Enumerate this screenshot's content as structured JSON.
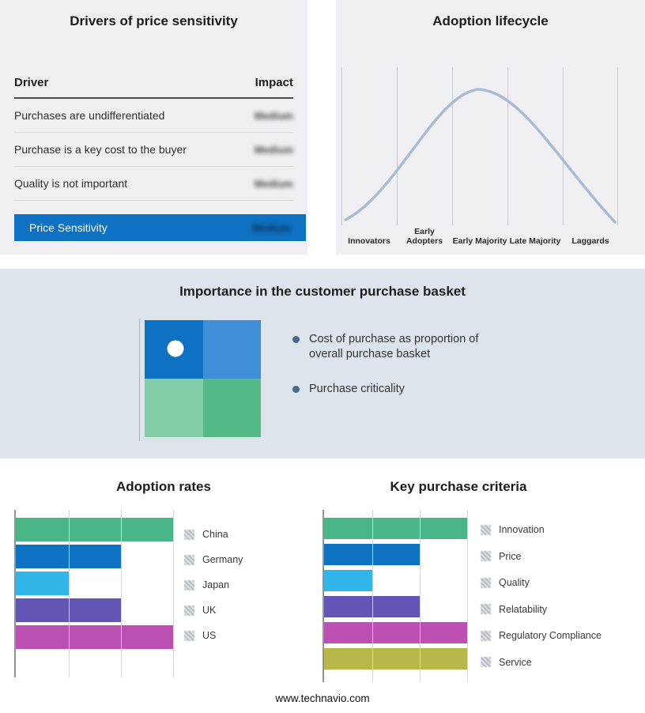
{
  "page": {
    "footer_url": "www.technavio.com"
  },
  "drivers_panel": {
    "title": "Drivers of price sensitivity",
    "columns": {
      "driver": "Driver",
      "impact": "Impact"
    },
    "rows": [
      {
        "label": "Purchases are undifferentiated",
        "impact": "Medium"
      },
      {
        "label": "Purchase is a key cost to the buyer",
        "impact": "Medium"
      },
      {
        "label": "Quality is not important",
        "impact": "Medium"
      }
    ],
    "summary": {
      "label": "Price Sensitivity",
      "impact": "Medium",
      "bg_color": "#0e71c2"
    }
  },
  "basket_panel": {
    "title": "Importance in the customer purchase basket",
    "bullets": [
      "Cost of purchase as proportion of overall purchase basket",
      "Purchase criticality"
    ],
    "bullet_color": "#49698e",
    "matrix": {
      "top_left": "#0e71c2",
      "top_right": "#3e8ed8",
      "bottom_left": "#82cba7",
      "bottom_right": "#52b987",
      "dot_quadrant": "top-left"
    }
  },
  "chart_data": [
    {
      "type": "bar",
      "title": "Adoption rates",
      "orientation": "horizontal",
      "categories": [
        "China",
        "Germany",
        "Japan",
        "UK",
        "US"
      ],
      "values": [
        3,
        2,
        1,
        2,
        3
      ],
      "xlim": [
        0,
        3
      ],
      "colors": [
        "#4ab586",
        "#0e71c2",
        "#32b6ea",
        "#6355b4",
        "#bd50b3"
      ],
      "grid": true,
      "legend_position": "right"
    },
    {
      "type": "bar",
      "title": "Key purchase criteria",
      "orientation": "horizontal",
      "categories": [
        "Innovation",
        "Price",
        "Quality",
        "Relatability",
        "Regulatory Compliance",
        "Service"
      ],
      "values": [
        3,
        2,
        1,
        2,
        3,
        3
      ],
      "xlim": [
        0,
        3
      ],
      "colors": [
        "#4ab586",
        "#0e71c2",
        "#32b6ea",
        "#6355b4",
        "#bd50b3",
        "#b8b84a"
      ],
      "grid": true,
      "legend_position": "right"
    },
    {
      "type": "line",
      "title": "Adoption lifecycle",
      "x": [
        "Innovators",
        "Early Adopters",
        "Early Majority",
        "Late Majority",
        "Laggards"
      ],
      "shape": "bell curve",
      "color": "#a8bcd5",
      "grid": true
    }
  ]
}
